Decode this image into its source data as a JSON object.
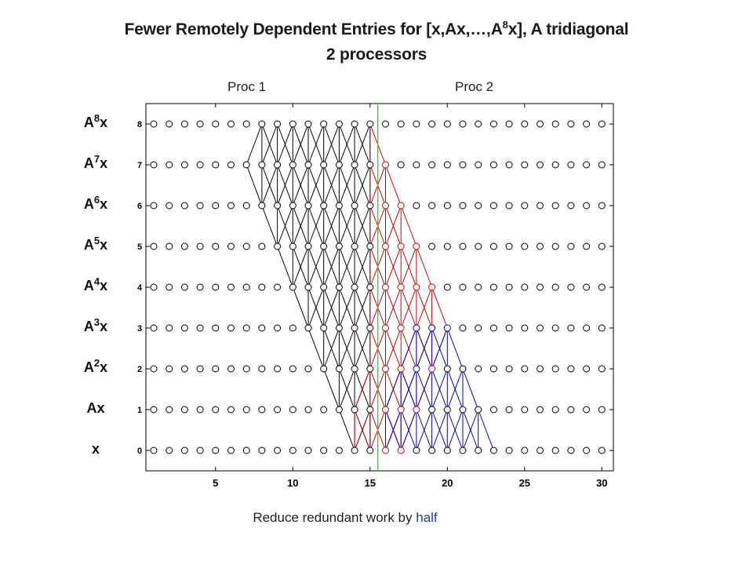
{
  "title": {
    "prefix": "Fewer Remotely Dependent Entries for [x,Ax,…,A",
    "power": "8",
    "suffix": "x], A tridiagonal",
    "line2": "2 processors"
  },
  "procs": [
    "Proc 1",
    "Proc 2"
  ],
  "row_labels": [
    {
      "base": "x",
      "power": ""
    },
    {
      "base": "Ax",
      "power": ""
    },
    {
      "base": "A",
      "power": "2",
      "tail": "x"
    },
    {
      "base": "A",
      "power": "3",
      "tail": "x"
    },
    {
      "base": "A",
      "power": "4",
      "tail": "x"
    },
    {
      "base": "A",
      "power": "5",
      "tail": "x"
    },
    {
      "base": "A",
      "power": "6",
      "tail": "x"
    },
    {
      "base": "A",
      "power": "7",
      "tail": "x"
    },
    {
      "base": "A",
      "power": "8",
      "tail": "x"
    }
  ],
  "caption": {
    "text": "Reduce redundant work by ",
    "accent": "half"
  },
  "colors": {
    "black": "#000000",
    "red": "#cc0000",
    "blue": "#0000b0",
    "green": "#33cc33",
    "accent": "#1f3f9c"
  },
  "chart_data": {
    "type": "scatter",
    "x_ticks": [
      "5",
      "10",
      "15",
      "20",
      "25",
      "30"
    ],
    "y_ticks": [
      "0",
      "1",
      "2",
      "3",
      "4",
      "5",
      "6",
      "7",
      "8"
    ],
    "xlim": [
      0.5,
      30.5
    ],
    "ylim": [
      -0.5,
      8.5
    ],
    "n_entries": 30,
    "n_levels": 8,
    "proc_boundary": 15.5,
    "black_region": {
      "apex_level": 8,
      "apex_range": [
        8,
        15
      ]
    },
    "red_region": {
      "apex_level": 8,
      "right_edge_at_level0": 24
    },
    "blue_region": {
      "top_level": 3,
      "top_range": [
        18,
        20
      ]
    }
  }
}
